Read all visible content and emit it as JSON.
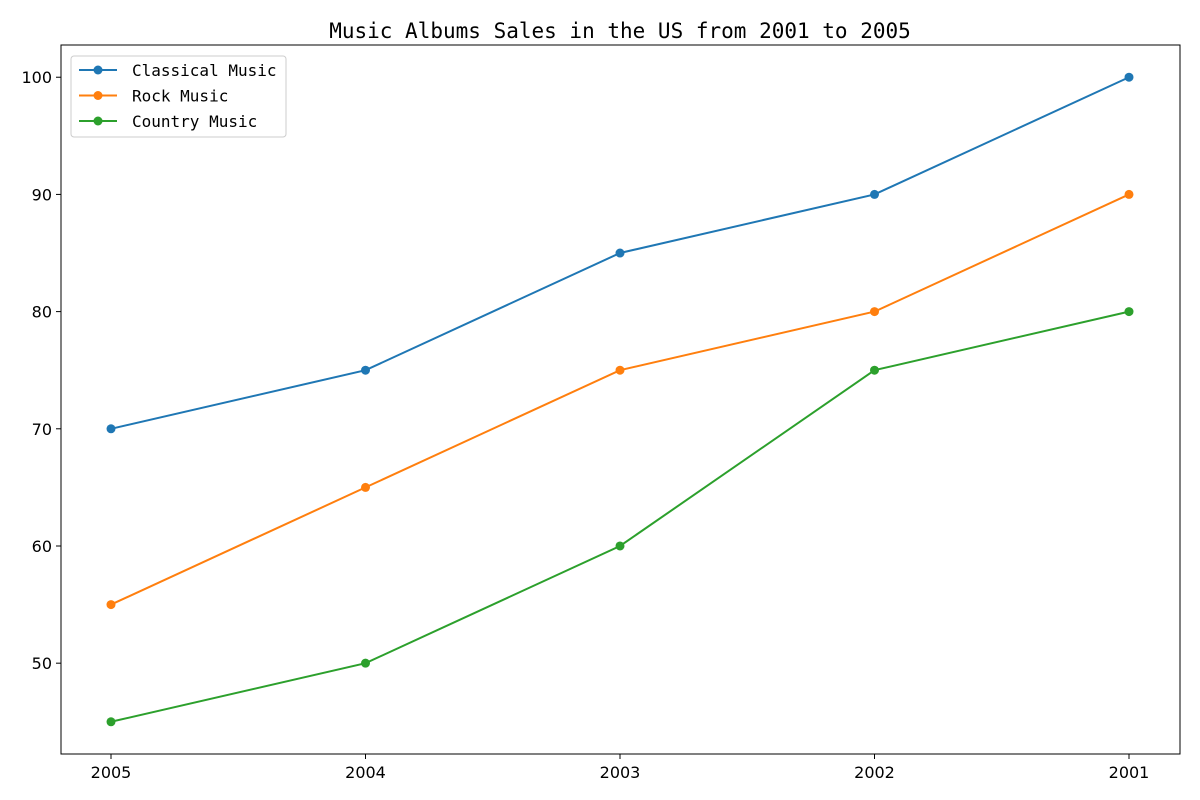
{
  "chart_data": {
    "type": "line",
    "title": "Music Albums Sales in the US from 2001 to 2005",
    "xlabel": "",
    "ylabel": "",
    "categories": [
      "2005",
      "2004",
      "2003",
      "2002",
      "2001"
    ],
    "yticks": [
      50,
      60,
      70,
      80,
      90,
      100
    ],
    "ylim": [
      42.25,
      102.75
    ],
    "grid": false,
    "legend_position": "top-left",
    "series": [
      {
        "name": "Classical Music",
        "color": "#1f77b4",
        "values": [
          70,
          75,
          85,
          90,
          100
        ]
      },
      {
        "name": "Rock Music",
        "color": "#ff7f0e",
        "values": [
          55,
          65,
          75,
          80,
          90
        ]
      },
      {
        "name": "Country Music",
        "color": "#2ca02c",
        "values": [
          45,
          50,
          60,
          75,
          80
        ]
      }
    ]
  }
}
